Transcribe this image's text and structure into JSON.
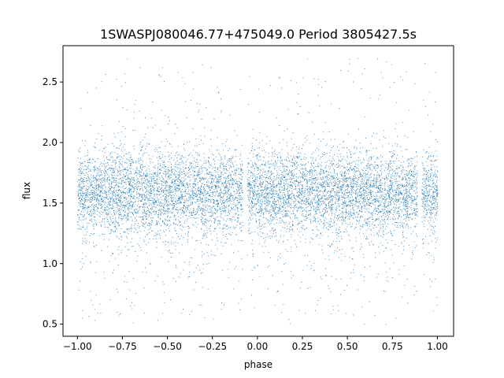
{
  "chart_data": {
    "type": "scatter",
    "title": "1SWASPJ080046.77+475049.0 Period 3805427.5s",
    "xlabel": "phase",
    "ylabel": "flux",
    "xlim": [
      -1.08,
      1.09
    ],
    "ylim": [
      0.4,
      2.8
    ],
    "x_ticks": [
      -1.0,
      -0.75,
      -0.5,
      -0.25,
      0.0,
      0.25,
      0.5,
      0.75,
      1.0
    ],
    "x_tick_labels": [
      "−1.00",
      "−0.75",
      "−0.50",
      "−0.25",
      "0.00",
      "0.25",
      "0.50",
      "0.75",
      "1.00"
    ],
    "y_ticks": [
      0.5,
      1.0,
      1.5,
      2.0,
      2.5
    ],
    "y_tick_labels": [
      "0.5",
      "1.0",
      "1.5",
      "2.0",
      "2.5"
    ],
    "grid": false,
    "legend": "none",
    "marker_color": "#1f77b4",
    "series": [
      {
        "x_range": [
          -1.0,
          1.0
        ],
        "points_approx": 40000,
        "core_flux_range": [
          1.2,
          1.9
        ],
        "core_center_flux": 1.6,
        "outlier_flux_range": [
          0.5,
          2.7
        ],
        "gaps_phase": [
          -0.07,
          0.9
        ]
      }
    ]
  }
}
